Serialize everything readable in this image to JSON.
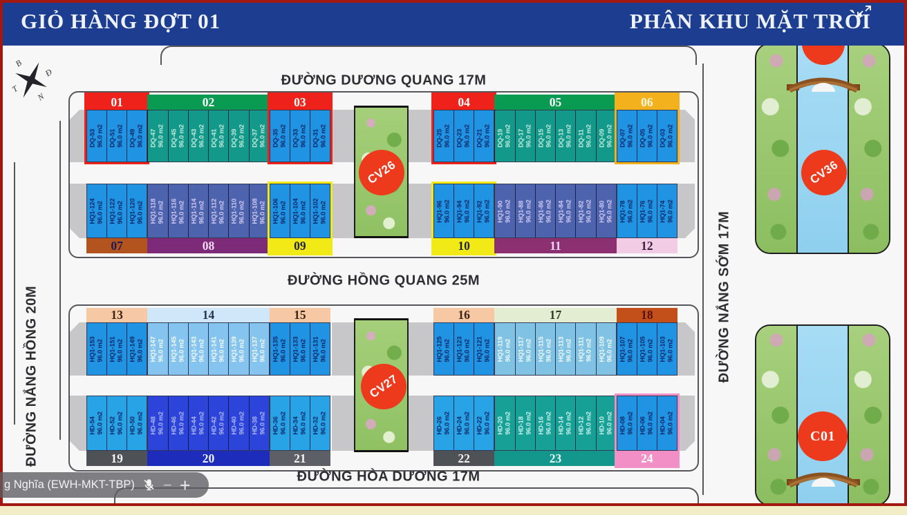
{
  "title_bar": {
    "left": "GIỎ HÀNG ĐỢT 01",
    "right": "PHÂN KHU MẶT TRỜI"
  },
  "streets": {
    "top": "ĐƯỜNG DƯƠNG QUANG 17M",
    "middle": "ĐƯỜNG HỒNG QUANG 25M",
    "bottom": "ĐƯỜNG HÒA DƯƠNG 17M",
    "left": "ĐƯỜNG NẮNG HỒNG 20M",
    "right": "ĐƯỜNG NẮNG SỚM 17M"
  },
  "compass": {
    "n": "B",
    "e": "Đ",
    "w": "T",
    "s": "N"
  },
  "markers": {
    "cv26": "CV26",
    "cv27": "CV27",
    "cv36": "CV36",
    "c01": "C01"
  },
  "area_label": "96.0 m2",
  "overlay": {
    "name": "g Nghĩa (EWH-MKT-TBP)",
    "minus": "−",
    "plus": "+"
  },
  "accent_colors": {
    "frame_red": "#a2170f",
    "header_blue": "#1d3d90",
    "marker_red": "#ee3a1c"
  },
  "rows": [
    {
      "blocks": [
        {
          "num": "01",
          "group": 0,
          "header_bg": "#ee221a",
          "header_fg": "#ffffff",
          "plot_bg": "#2093e2",
          "plot_fg": "#0c2a6b",
          "outline": "#ee221a",
          "plots": [
            "DQ-53",
            "DQ-51",
            "DQ-49"
          ]
        },
        {
          "num": "02",
          "group": 0,
          "header_bg": "#0a9b52",
          "header_fg": "#ffffff",
          "plot_bg": "#13998a",
          "plot_fg": "#bfe9dc",
          "plots": [
            "DQ-47",
            "DQ-45",
            "DQ-43",
            "DQ-41",
            "DQ-39",
            "DQ-37"
          ]
        },
        {
          "num": "03",
          "group": 0,
          "header_bg": "#ee221a",
          "header_fg": "#ffffff",
          "plot_bg": "#2093e2",
          "plot_fg": "#0c2a6b",
          "outline": "#ee221a",
          "plots": [
            "DQ-35",
            "DQ-33",
            "DQ-31"
          ]
        },
        {
          "num": "04",
          "group": 1,
          "header_bg": "#ee221a",
          "header_fg": "#ffffff",
          "plot_bg": "#2093e2",
          "plot_fg": "#0c2a6b",
          "outline": "#ee221a",
          "plots": [
            "DQ-25",
            "DQ-23",
            "DQ-21"
          ]
        },
        {
          "num": "05",
          "group": 1,
          "header_bg": "#0a9b52",
          "header_fg": "#ffffff",
          "plot_bg": "#13998a",
          "plot_fg": "#bfe9dc",
          "plots": [
            "DQ-19",
            "DQ-17",
            "DQ-15",
            "DQ-13",
            "DQ-11",
            "DQ-09"
          ]
        },
        {
          "num": "06",
          "group": 1,
          "header_bg": "#f3b11d",
          "header_fg": "#fff7e0",
          "plot_bg": "#2093e2",
          "plot_fg": "#0c2a6b",
          "outline": "#f3b11d",
          "plots": [
            "DQ-07",
            "DQ-05",
            "DQ-03"
          ]
        }
      ]
    },
    {
      "blocks": [
        {
          "num": "07",
          "group": 0,
          "header_bg": "#b3531d",
          "header_fg": "#201a4e",
          "plot_bg": "#2093e2",
          "plot_fg": "#0c2a6b",
          "plots": [
            "HQ1-124",
            "HQ1-122",
            "HQ1-120"
          ]
        },
        {
          "num": "08",
          "group": 0,
          "header_bg": "#7d2b79",
          "header_fg": "#f3d9f1",
          "plot_bg": "#4d63ae",
          "plot_fg": "#cfc9f2",
          "plots": [
            "HQ1-118",
            "HQ1-116",
            "HQ1-114",
            "HQ1-112",
            "HQ1-110",
            "HQ1-108"
          ]
        },
        {
          "num": "09",
          "group": 0,
          "header_bg": "#f2ea16",
          "header_fg": "#22243e",
          "plot_bg": "#2093e2",
          "plot_fg": "#0c2a6b",
          "outline": "#f2ea16",
          "plots": [
            "HQ1-106",
            "HQ1-104",
            "HQ1-102"
          ]
        },
        {
          "num": "10",
          "group": 1,
          "header_bg": "#f2ea16",
          "header_fg": "#22243e",
          "plot_bg": "#2093e2",
          "plot_fg": "#0c2a6b",
          "outline": "#f2ea16",
          "plots": [
            "HQ1-96",
            "HQ1-94",
            "HQ1-92"
          ]
        },
        {
          "num": "11",
          "group": 1,
          "header_bg": "#8d3071",
          "header_fg": "#f3d9f1",
          "plot_bg": "#4d63ae",
          "plot_fg": "#cfc9f2",
          "plots": [
            "HQ1-90",
            "HQ1-88",
            "HQ1-86",
            "HQ1-84",
            "HQ1-82",
            "HQ1-80"
          ]
        },
        {
          "num": "12",
          "group": 1,
          "header_bg": "#f2cbe5",
          "header_fg": "#3a2140",
          "plot_bg": "#2093e2",
          "plot_fg": "#0c2a6b",
          "plots": [
            "HQ1-78",
            "HQ1-76",
            "HQ1-74"
          ]
        }
      ]
    },
    {
      "blocks": [
        {
          "num": "13",
          "group": 0,
          "header_bg": "#f6c9a4",
          "header_fg": "#3b2416",
          "plot_bg": "#2093e2",
          "plot_fg": "#0c2a6b",
          "plots": [
            "HQ1-153",
            "HQ1-151",
            "HQ1-149"
          ]
        },
        {
          "num": "14",
          "group": 0,
          "header_bg": "#cfe7f8",
          "header_fg": "#25324a",
          "plot_bg": "#85c4ee",
          "plot_fg": "#f2f9ff",
          "plots": [
            "HQ1-147",
            "HQ1-145",
            "HQ1-143",
            "HQ1-141",
            "HQ1-139",
            "HQ1-137"
          ]
        },
        {
          "num": "15",
          "group": 0,
          "header_bg": "#f6c9a4",
          "header_fg": "#3b2416",
          "plot_bg": "#2093e2",
          "plot_fg": "#0c2a6b",
          "plots": [
            "HQ1-135",
            "HQ1-133",
            "HQ1-131"
          ]
        },
        {
          "num": "16",
          "group": 1,
          "header_bg": "#f6c9a4",
          "header_fg": "#3b2416",
          "plot_bg": "#2093e2",
          "plot_fg": "#0c2a6b",
          "plots": [
            "HQ1-125",
            "HQ1-123",
            "HQ1-121"
          ]
        },
        {
          "num": "17",
          "group": 1,
          "header_bg": "#e3edd2",
          "header_fg": "#2c3a25",
          "plot_bg": "#7fc2e4",
          "plot_fg": "#f2f9ff",
          "plots": [
            "HQ1-119",
            "HQ1-117",
            "HQ1-115",
            "HQ1-113",
            "HQ1-111",
            "HQ1-109"
          ]
        },
        {
          "num": "18",
          "group": 1,
          "header_bg": "#c3501a",
          "header_fg": "#571108",
          "plot_bg": "#2093e2",
          "plot_fg": "#0c2a6b",
          "plots": [
            "HQ1-107",
            "HQ1-105",
            "HQ1-103"
          ]
        }
      ]
    },
    {
      "blocks": [
        {
          "num": "19",
          "group": 0,
          "header_bg": "#4e5257",
          "header_fg": "#f4f4f4",
          "plot_bg": "#27a3e6",
          "plot_fg": "#0c2a6b",
          "plots": [
            "HD-54",
            "HD-52",
            "HD-50"
          ]
        },
        {
          "num": "20",
          "group": 0,
          "header_bg": "#1d2cba",
          "header_fg": "#eef0ff",
          "plot_bg": "#2c44da",
          "plot_fg": "#aab6fa",
          "plots": [
            "HD-48",
            "HD-46",
            "HD-44",
            "HD-42",
            "HD-40",
            "HD-38"
          ]
        },
        {
          "num": "21",
          "group": 0,
          "header_bg": "#5c6066",
          "header_fg": "#f4f4f4",
          "plot_bg": "#27a3e6",
          "plot_fg": "#0c2a6b",
          "plots": [
            "HD-36",
            "HD-34",
            "HD-32"
          ]
        },
        {
          "num": "22",
          "group": 1,
          "header_bg": "#4e5257",
          "header_fg": "#f4f4f4",
          "plot_bg": "#27a3e6",
          "plot_fg": "#0c2a6b",
          "plots": [
            "HD-26",
            "HD-24",
            "HD-22"
          ]
        },
        {
          "num": "23",
          "group": 1,
          "header_bg": "#13968b",
          "header_fg": "#e8f7f5",
          "plot_bg": "#17a096",
          "plot_fg": "#c9efeb",
          "plots": [
            "HD-20",
            "HD-18",
            "HD-16",
            "HD-14",
            "HD-12",
            "HD-10"
          ]
        },
        {
          "num": "24",
          "group": 1,
          "header_bg": "#f28fc6",
          "header_fg": "#ffffff",
          "plot_bg": "#2093e2",
          "plot_fg": "#0c2a6b",
          "outline": "#f28fc6",
          "plots": [
            "HD-08",
            "HD-06",
            "HD-04"
          ]
        }
      ]
    }
  ]
}
